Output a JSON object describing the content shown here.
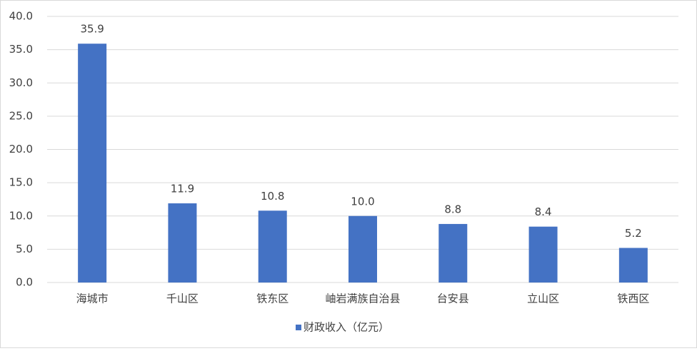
{
  "chart_data": {
    "type": "bar",
    "categories": [
      "海城市",
      "千山区",
      "铁东区",
      "岫岩满族自治县",
      "台安县",
      "立山区",
      "铁西区"
    ],
    "series": [
      {
        "name": "财政收入（亿元）",
        "color": "#4472c4",
        "values": [
          35.9,
          11.9,
          10.8,
          10.0,
          8.8,
          8.4,
          5.2
        ],
        "value_labels": [
          "35.9",
          "11.9",
          "10.8",
          "10.0",
          "8.8",
          "8.4",
          "5.2"
        ]
      }
    ],
    "ylim": [
      0,
      40
    ],
    "yticks": [
      {
        "value": 0,
        "label": "0.0"
      },
      {
        "value": 5,
        "label": "5.0"
      },
      {
        "value": 10,
        "label": "10.0"
      },
      {
        "value": 15,
        "label": "15.0"
      },
      {
        "value": 20,
        "label": "20.0"
      },
      {
        "value": 25,
        "label": "25.0"
      },
      {
        "value": 30,
        "label": "30.0"
      },
      {
        "value": 35,
        "label": "35.0"
      },
      {
        "value": 40,
        "label": "40.0"
      }
    ],
    "grid": true,
    "legend": "bottom"
  }
}
